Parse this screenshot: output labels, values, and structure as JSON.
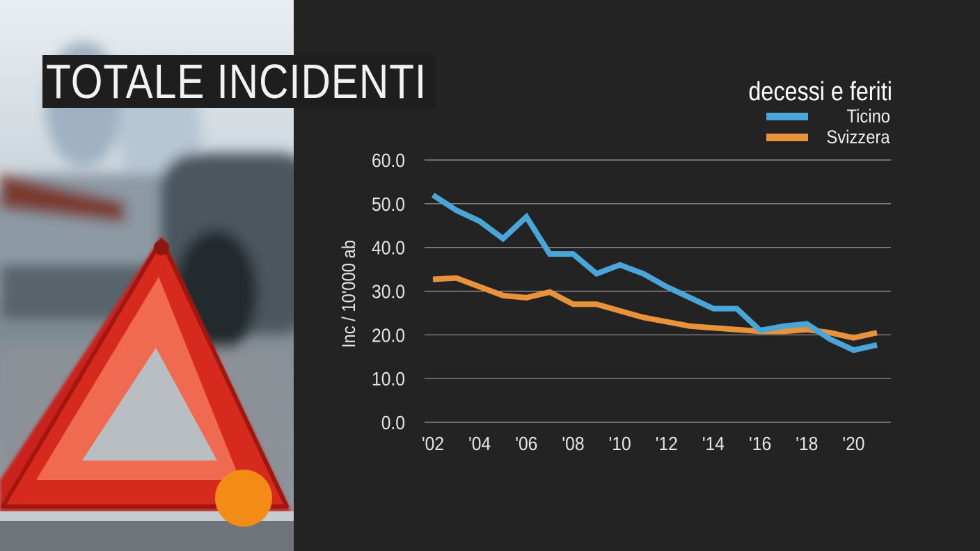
{
  "header": {
    "title": "TOTALE INCIDENTI"
  },
  "legend": {
    "title": "decessi e feriti",
    "items": [
      {
        "label": "Ticino",
        "color": "#4aa6d9"
      },
      {
        "label": "Svizzera",
        "color": "#e8923a"
      }
    ]
  },
  "photo": {
    "subject": "warning-triangle-road-accident",
    "accent_color": "#f28c16"
  },
  "chart_data": {
    "type": "line",
    "title": "TOTALE INCIDENTI",
    "subtitle": "decessi e feriti",
    "xlabel": "",
    "ylabel": "Inc / 10'000 ab",
    "ylim": [
      0,
      60
    ],
    "yticks": [
      "0.0",
      "10.0",
      "20.0",
      "30.0",
      "40.0",
      "50.0",
      "60.0"
    ],
    "xlim": [
      2002,
      2021
    ],
    "xticks": [
      {
        "year": 2002,
        "label": "'02"
      },
      {
        "year": 2004,
        "label": "'04"
      },
      {
        "year": 2006,
        "label": "'06"
      },
      {
        "year": 2008,
        "label": "'08"
      },
      {
        "year": 2010,
        "label": "'10"
      },
      {
        "year": 2012,
        "label": "'12"
      },
      {
        "year": 2014,
        "label": "'14"
      },
      {
        "year": 2016,
        "label": "'16"
      },
      {
        "year": 2018,
        "label": "'18"
      },
      {
        "year": 2020,
        "label": "'20"
      }
    ],
    "grid": true,
    "legend_position": "top-right",
    "x": [
      2002,
      2003,
      2004,
      2005,
      2006,
      2007,
      2008,
      2009,
      2010,
      2011,
      2012,
      2013,
      2014,
      2015,
      2016,
      2017,
      2018,
      2019,
      2020,
      2021
    ],
    "series": [
      {
        "name": "Ticino",
        "color": "#4aa6d9",
        "values": [
          52.0,
          48.5,
          46.0,
          42.0,
          47.0,
          38.5,
          38.5,
          34.0,
          36.0,
          34.0,
          31.0,
          28.5,
          26.0,
          26.0,
          21.0,
          22.0,
          22.5,
          19.0,
          16.5,
          17.7
        ]
      },
      {
        "name": "Svizzera",
        "color": "#e8923a",
        "values": [
          32.7,
          33.0,
          31.0,
          29.0,
          28.5,
          29.8,
          27.0,
          27.0,
          25.5,
          24.0,
          23.0,
          22.0,
          21.6,
          21.2,
          20.8,
          20.8,
          21.2,
          20.5,
          19.3,
          20.5
        ]
      }
    ]
  }
}
